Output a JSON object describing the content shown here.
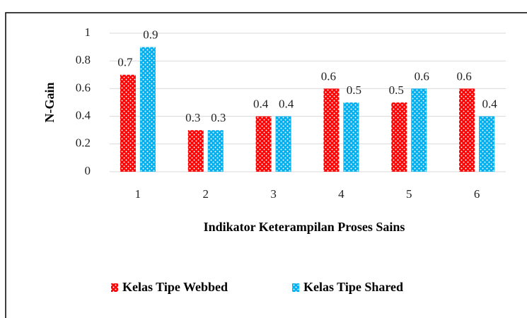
{
  "chart_data": {
    "type": "bar",
    "x_label": "Indikator Keterampilan Proses Sains",
    "y_label": "N-Gain",
    "categories": [
      "1",
      "2",
      "3",
      "4",
      "5",
      "6"
    ],
    "series": [
      {
        "name": "Kelas Tipe Webbed",
        "color": "#ff0000",
        "values": [
          0.7,
          0.3,
          0.4,
          0.6,
          0.5,
          0.6
        ]
      },
      {
        "name": "Kelas Tipe Shared",
        "color": "#00b0f0",
        "values": [
          0.9,
          0.3,
          0.4,
          0.5,
          0.6,
          0.4
        ]
      }
    ],
    "ylim": [
      0,
      1
    ],
    "yticks": [
      0,
      0.2,
      0.4,
      0.6,
      0.8,
      1
    ],
    "grid": true,
    "legend": "bottom"
  }
}
